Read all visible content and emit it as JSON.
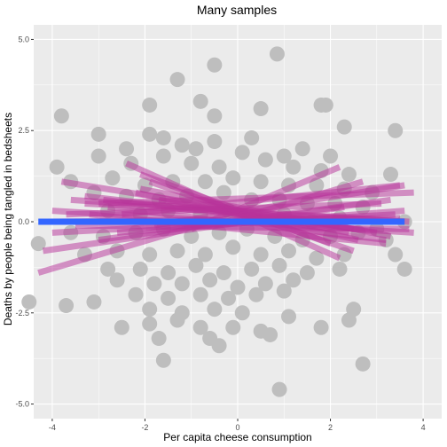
{
  "chart_data": {
    "type": "scatter",
    "title": "Many samples",
    "xlabel": "Per capita cheese consumption",
    "ylabel": "Deaths by people being tangled in bedsheets",
    "xlim": [
      -4.4,
      4.4
    ],
    "ylim": [
      -5.4,
      5.4
    ],
    "x_ticks": [
      -4,
      -2,
      0,
      2,
      4
    ],
    "x_tick_labels": [
      "-4",
      "-2",
      "0",
      "2",
      "4"
    ],
    "y_ticks": [
      -5,
      -2.5,
      0,
      2.5,
      5
    ],
    "y_tick_labels": [
      "-5.0",
      "-2.5",
      "0.0",
      "2.5",
      "5.0"
    ],
    "grid": true,
    "points": [
      [
        0.85,
        4.6
      ],
      [
        -0.5,
        4.3
      ],
      [
        -1.3,
        3.9
      ],
      [
        -1.9,
        3.2
      ],
      [
        -0.8,
        3.3
      ],
      [
        -3.8,
        2.9
      ],
      [
        -0.5,
        2.9
      ],
      [
        0.5,
        3.1
      ],
      [
        1.8,
        3.2
      ],
      [
        1.9,
        3.2
      ],
      [
        3.4,
        2.5
      ],
      [
        2.3,
        2.6
      ],
      [
        -3.0,
        2.4
      ],
      [
        -2.4,
        2.0
      ],
      [
        -1.9,
        2.4
      ],
      [
        -1.6,
        2.3
      ],
      [
        -1.2,
        2.1
      ],
      [
        -0.9,
        2.0
      ],
      [
        -0.5,
        2.2
      ],
      [
        0.3,
        2.3
      ],
      [
        1.0,
        1.8
      ],
      [
        1.4,
        2.0
      ],
      [
        2.0,
        1.8
      ],
      [
        -3.9,
        1.5
      ],
      [
        -3.0,
        1.8
      ],
      [
        -2.3,
        1.6
      ],
      [
        -1.6,
        1.8
      ],
      [
        -1.0,
        1.6
      ],
      [
        -0.4,
        1.5
      ],
      [
        0.1,
        1.9
      ],
      [
        0.6,
        1.7
      ],
      [
        1.2,
        1.5
      ],
      [
        1.8,
        1.4
      ],
      [
        2.4,
        1.3
      ],
      [
        3.3,
        1.3
      ],
      [
        -3.6,
        1.1
      ],
      [
        -2.7,
        1.2
      ],
      [
        -2.0,
        1.0
      ],
      [
        -1.4,
        1.1
      ],
      [
        -0.7,
        1.1
      ],
      [
        -0.1,
        1.2
      ],
      [
        0.5,
        1.1
      ],
      [
        1.1,
        1.0
      ],
      [
        1.7,
        1.0
      ],
      [
        2.3,
        0.9
      ],
      [
        2.9,
        0.8
      ],
      [
        -3.1,
        0.8
      ],
      [
        -2.4,
        0.7
      ],
      [
        -1.7,
        0.6
      ],
      [
        -1.1,
        0.7
      ],
      [
        -0.3,
        0.8
      ],
      [
        0.3,
        0.6
      ],
      [
        0.9,
        0.6
      ],
      [
        1.5,
        0.5
      ],
      [
        2.1,
        0.5
      ],
      [
        2.7,
        0.4
      ],
      [
        -2.8,
        0.3
      ],
      [
        -2.1,
        0.2
      ],
      [
        -1.5,
        0.3
      ],
      [
        -0.8,
        0.2
      ],
      [
        -0.2,
        0.3
      ],
      [
        0.4,
        0.1
      ],
      [
        1.0,
        0.2
      ],
      [
        1.6,
        0.0
      ],
      [
        2.2,
        0.1
      ],
      [
        3.0,
        -0.2
      ],
      [
        3.6,
        0.0
      ],
      [
        -4.3,
        -0.6
      ],
      [
        -3.6,
        -0.3
      ],
      [
        -2.9,
        -0.4
      ],
      [
        -2.2,
        -0.3
      ],
      [
        -1.6,
        -0.2
      ],
      [
        -1.0,
        -0.4
      ],
      [
        -0.4,
        -0.3
      ],
      [
        0.2,
        -0.2
      ],
      [
        0.8,
        -0.4
      ],
      [
        1.4,
        -0.5
      ],
      [
        2.0,
        -0.4
      ],
      [
        2.6,
        -0.3
      ],
      [
        3.2,
        -0.5
      ],
      [
        -3.3,
        -0.9
      ],
      [
        -2.6,
        -0.8
      ],
      [
        -1.9,
        -0.9
      ],
      [
        -1.3,
        -0.8
      ],
      [
        -0.7,
        -0.9
      ],
      [
        -0.1,
        -0.7
      ],
      [
        0.5,
        -0.9
      ],
      [
        1.1,
        -0.8
      ],
      [
        1.7,
        -1.0
      ],
      [
        2.3,
        -0.9
      ],
      [
        3.4,
        -0.9
      ],
      [
        -2.8,
        -1.3
      ],
      [
        -2.1,
        -1.3
      ],
      [
        -1.5,
        -1.4
      ],
      [
        -0.9,
        -1.2
      ],
      [
        -0.3,
        -1.4
      ],
      [
        0.3,
        -1.3
      ],
      [
        0.9,
        -1.2
      ],
      [
        1.5,
        -1.4
      ],
      [
        2.2,
        -1.3
      ],
      [
        3.6,
        -1.3
      ],
      [
        -2.6,
        -1.6
      ],
      [
        -1.8,
        -1.7
      ],
      [
        -1.2,
        -1.7
      ],
      [
        -0.6,
        -1.6
      ],
      [
        0.0,
        -1.8
      ],
      [
        0.6,
        -1.7
      ],
      [
        1.2,
        -1.6
      ],
      [
        -2.2,
        -2.0
      ],
      [
        -1.5,
        -2.1
      ],
      [
        -0.8,
        -2.0
      ],
      [
        -0.2,
        -2.1
      ],
      [
        0.4,
        -2.0
      ],
      [
        1.0,
        -1.9
      ],
      [
        -4.5,
        -2.2
      ],
      [
        -3.7,
        -2.3
      ],
      [
        -3.1,
        -2.2
      ],
      [
        -1.9,
        -2.4
      ],
      [
        -1.2,
        -2.5
      ],
      [
        -0.5,
        -2.4
      ],
      [
        0.1,
        -2.5
      ],
      [
        1.1,
        -2.6
      ],
      [
        2.5,
        -2.4
      ],
      [
        -2.5,
        -2.9
      ],
      [
        -1.9,
        -2.8
      ],
      [
        -1.3,
        -2.7
      ],
      [
        -0.8,
        -2.9
      ],
      [
        -0.1,
        -2.9
      ],
      [
        0.5,
        -3.0
      ],
      [
        1.8,
        -2.9
      ],
      [
        2.4,
        -2.7
      ],
      [
        -1.7,
        -3.2
      ],
      [
        -0.6,
        -3.2
      ],
      [
        -0.4,
        -3.4
      ],
      [
        0.7,
        -3.1
      ],
      [
        -1.6,
        -3.8
      ],
      [
        2.7,
        -3.9
      ],
      [
        0.9,
        -4.6
      ]
    ],
    "sample_lines": [
      [
        -2.4,
        1.6,
        2.2,
        -1.0
      ],
      [
        -2.1,
        1.3,
        2.0,
        -0.6
      ],
      [
        -1.9,
        1.1,
        2.5,
        -0.8
      ],
      [
        -2.2,
        0.8,
        2.6,
        -0.5
      ],
      [
        -1.7,
        0.6,
        2.4,
        -0.3
      ],
      [
        -3.3,
        0.7,
        2.2,
        -0.1
      ],
      [
        -4.3,
        -1.4,
        -0.6,
        0.0
      ],
      [
        -4.2,
        -0.8,
        2.3,
        0.4
      ],
      [
        -4.0,
        -0.3,
        3.4,
        0.2
      ],
      [
        -3.6,
        0.6,
        3.7,
        0.0
      ],
      [
        -3.0,
        0.5,
        3.8,
        0.8
      ],
      [
        -2.5,
        0.2,
        3.5,
        1.0
      ],
      [
        -1.8,
        -0.1,
        3.6,
        1.0
      ],
      [
        -1.0,
        -0.2,
        2.2,
        1.5
      ],
      [
        -0.5,
        -0.1,
        2.7,
        1.1
      ],
      [
        -3.8,
        1.1,
        3.0,
        -0.3
      ],
      [
        -2.8,
        0.4,
        3.2,
        -0.5
      ],
      [
        -3.5,
        -0.1,
        3.7,
        -0.2
      ],
      [
        -3.2,
        0.2,
        3.2,
        -0.6
      ],
      [
        -2.6,
        -0.3,
        3.6,
        0.3
      ],
      [
        -3.7,
        0.2,
        3.1,
        0.5
      ],
      [
        -2.9,
        0.6,
        2.5,
        -0.2
      ],
      [
        -3.3,
        0.5,
        3.6,
        0.0
      ],
      [
        -4.1,
        0.0,
        3.5,
        0.1
      ],
      [
        -3.0,
        -0.5,
        3.3,
        0.6
      ],
      [
        -2.1,
        0.9,
        3.3,
        -0.4
      ],
      [
        -4.0,
        0.3,
        3.8,
        -0.3
      ]
    ],
    "fit_line": [
      [
        -4.3,
        0.0
      ],
      [
        3.6,
        0.0
      ]
    ],
    "colors": {
      "panel_background": "#ebebeb",
      "grid": "#ffffff",
      "points": "#bebebe",
      "sample_lines": "#b8329a",
      "fit_line": "#3366ff"
    }
  }
}
